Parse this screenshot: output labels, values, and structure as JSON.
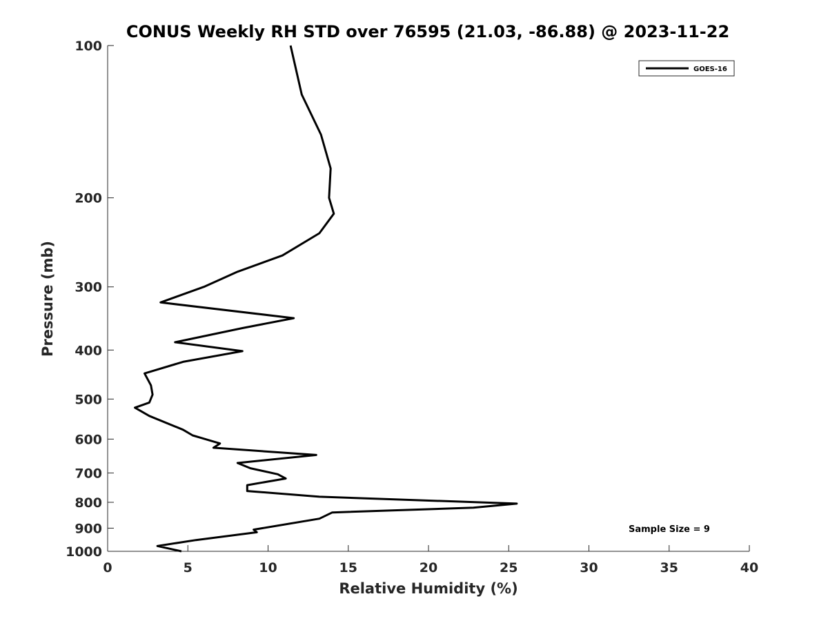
{
  "chart_data": {
    "type": "line",
    "title": "CONUS Weekly RH STD over 76595 (21.03, -86.88) @ 2023-11-22",
    "xlabel": "Relative Humidity (%)",
    "ylabel": "Pressure (mb)",
    "xlim": [
      0,
      40
    ],
    "ylim": [
      100,
      1000
    ],
    "y_scale": "log",
    "y_reversed": true,
    "x_ticks": [
      "0",
      "5",
      "10",
      "15",
      "20",
      "25",
      "30",
      "35",
      "40"
    ],
    "y_ticks": [
      "100",
      "200",
      "300",
      "400",
      "500",
      "600",
      "700",
      "800",
      "900",
      "1000"
    ],
    "grid": false,
    "legend": {
      "position": "top-right",
      "entries": [
        "GOES-16"
      ]
    },
    "annotation": "Sample Size = 9",
    "series": [
      {
        "name": "GOES-16",
        "color": "#000000",
        "points": [
          [
            11.4,
            100
          ],
          [
            12.1,
            125
          ],
          [
            13.3,
            150
          ],
          [
            13.9,
            175
          ],
          [
            13.8,
            200
          ],
          [
            14.1,
            215
          ],
          [
            13.2,
            235
          ],
          [
            10.9,
            260
          ],
          [
            8.1,
            280
          ],
          [
            6.0,
            300
          ],
          [
            3.3,
            322
          ],
          [
            11.6,
            346
          ],
          [
            8.4,
            362
          ],
          [
            4.2,
            386
          ],
          [
            8.4,
            402
          ],
          [
            4.7,
            422
          ],
          [
            2.3,
            445
          ],
          [
            2.7,
            470
          ],
          [
            2.8,
            490
          ],
          [
            2.6,
            508
          ],
          [
            1.7,
            520
          ],
          [
            2.6,
            540
          ],
          [
            4.7,
            575
          ],
          [
            5.3,
            590
          ],
          [
            7.0,
            612
          ],
          [
            6.6,
            624
          ],
          [
            13.0,
            645
          ],
          [
            8.1,
            669
          ],
          [
            8.9,
            685
          ],
          [
            10.6,
            704
          ],
          [
            11.1,
            718
          ],
          [
            8.7,
            740
          ],
          [
            8.7,
            760
          ],
          [
            13.2,
            780
          ],
          [
            25.5,
            805
          ],
          [
            22.8,
            820
          ],
          [
            14.0,
            838
          ],
          [
            13.2,
            862
          ],
          [
            9.1,
            906
          ],
          [
            9.3,
            917
          ],
          [
            5.5,
            950
          ],
          [
            3.1,
            976
          ],
          [
            4.6,
            1000
          ]
        ]
      }
    ]
  }
}
